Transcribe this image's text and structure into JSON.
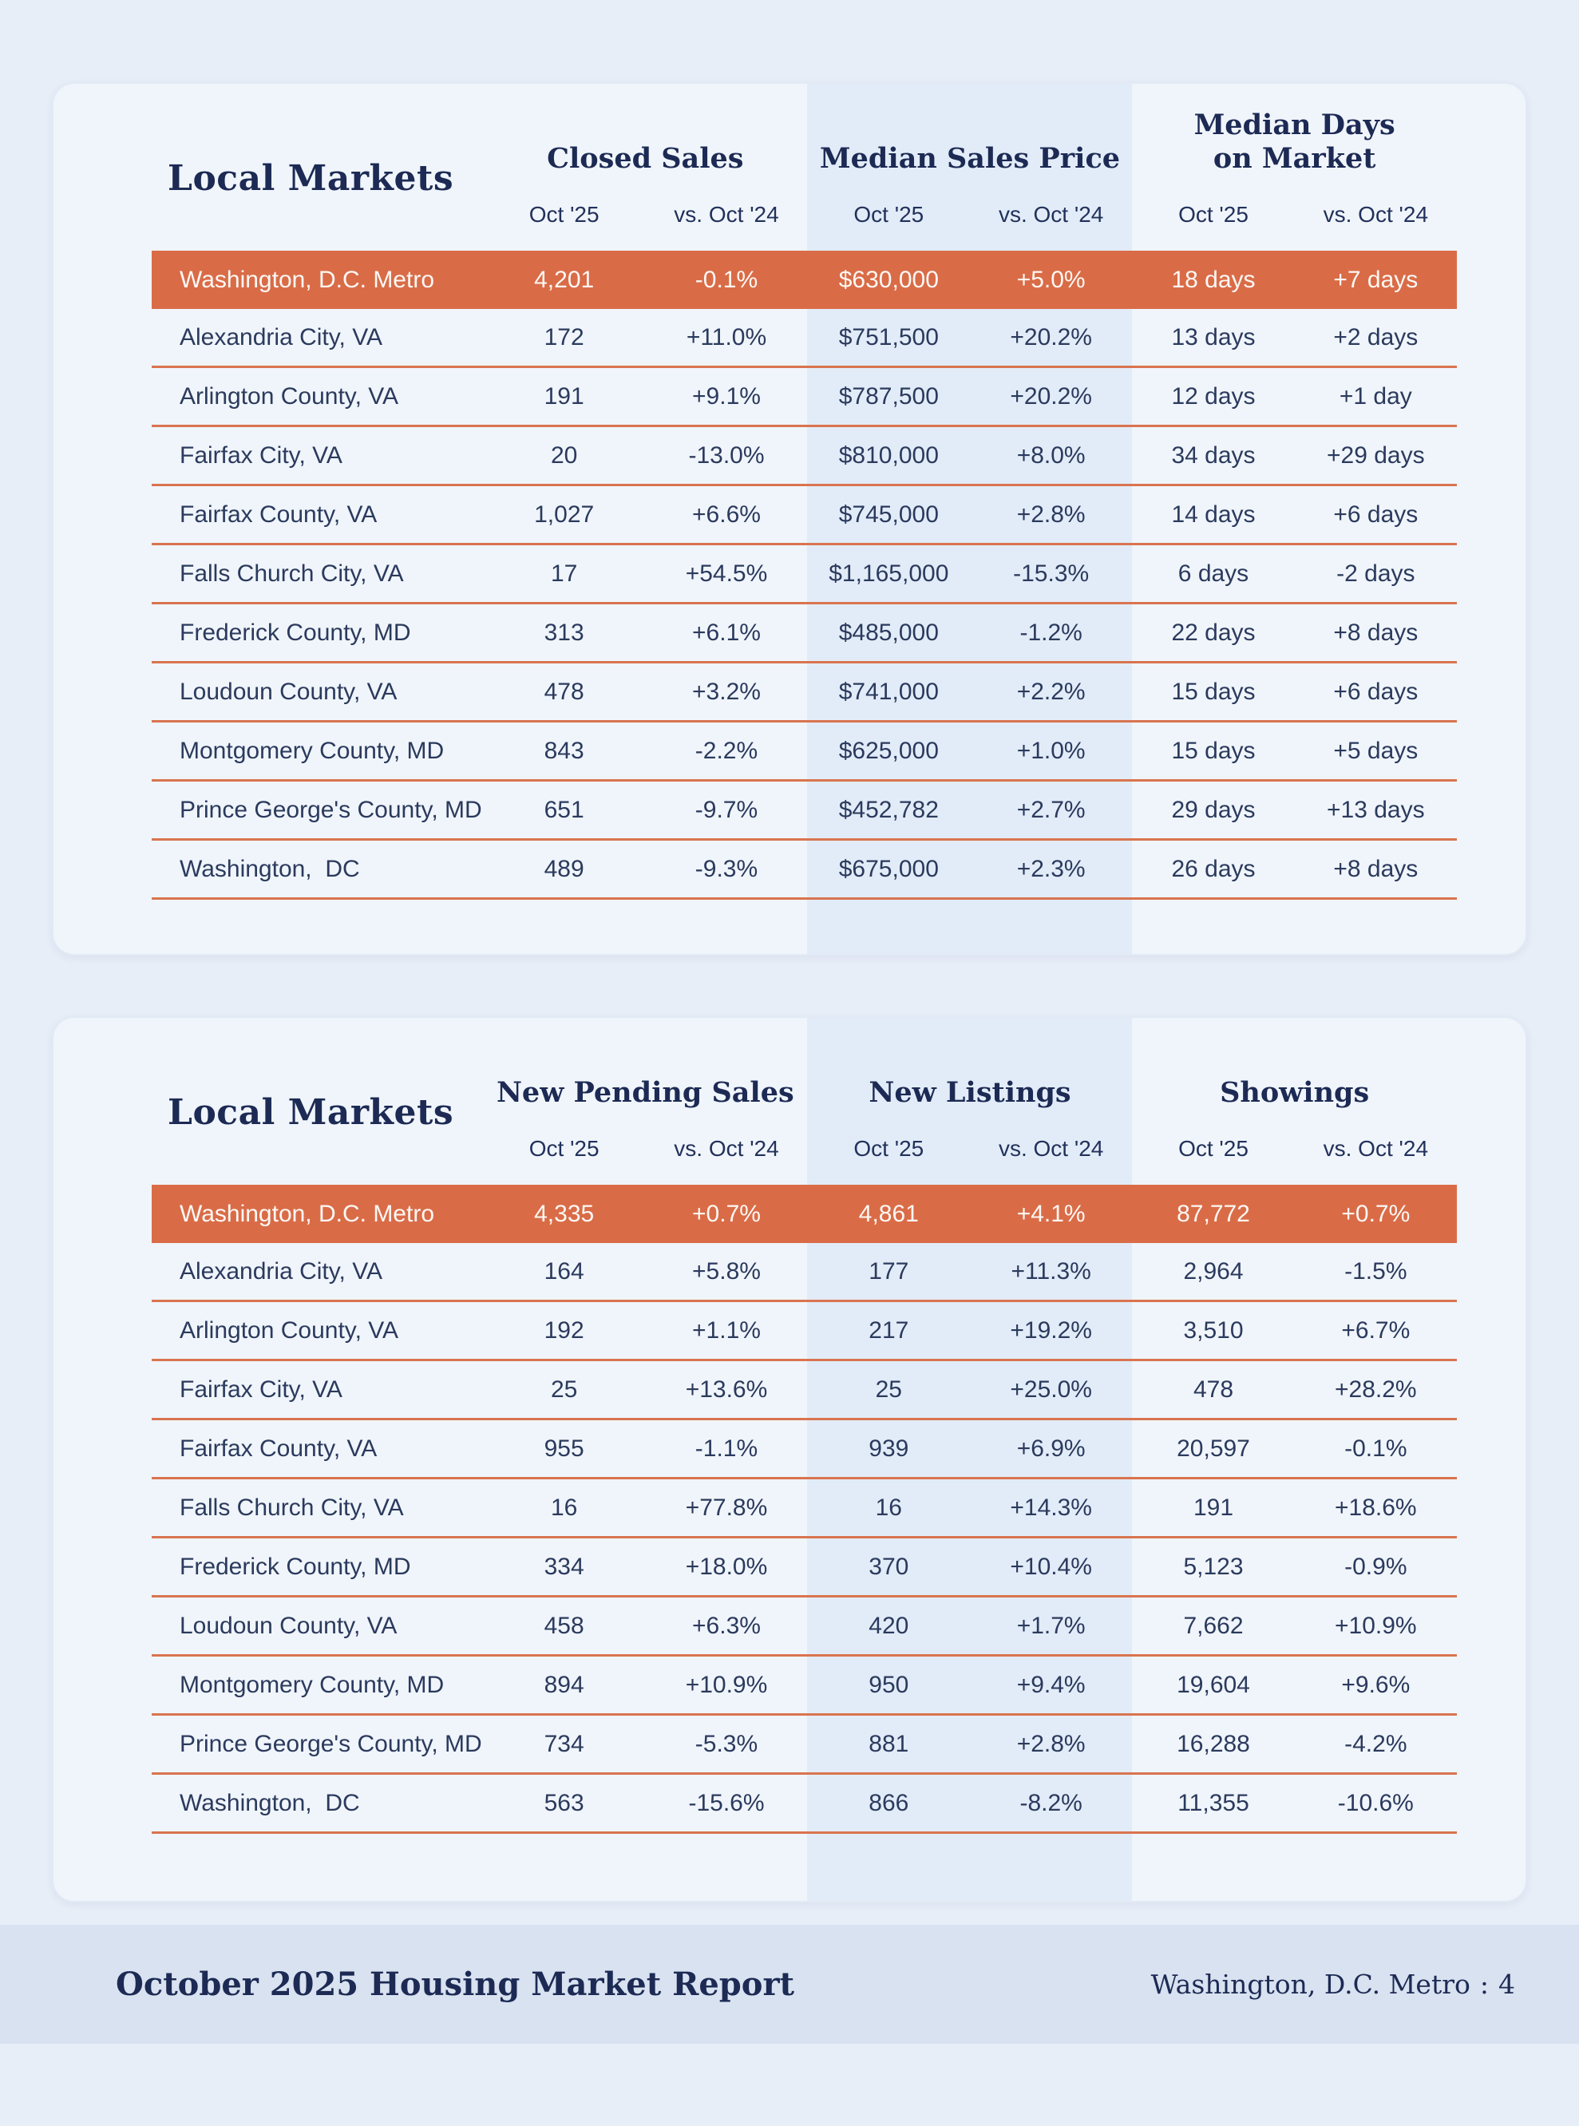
{
  "colors": {
    "accent_orange": "#d96c47",
    "row_separator": "#d9744f",
    "heading_navy": "#1c2a54",
    "body_text": "#2b3a5d",
    "card_background": "#f0f5fb",
    "page_background": "#e8eef8",
    "column_band": "#e2ecf8",
    "footer_background": "#d8e2f0"
  },
  "tables": [
    {
      "title": "Local Markets",
      "group_headers": [
        {
          "line1": "Closed Sales",
          "line2": ""
        },
        {
          "line1": "Median Sales Price",
          "line2": ""
        },
        {
          "line1": "Median Days",
          "line2": "on Market"
        }
      ],
      "subheaders": [
        "Oct '25",
        "vs. Oct '24",
        "Oct '25",
        "vs. Oct '24",
        "Oct '25",
        "vs. Oct '24"
      ],
      "metro_row": {
        "name": "Washington, D.C. Metro",
        "values": [
          "4,201",
          "-0.1%",
          "$630,000",
          "+5.0%",
          "18 days",
          "+7 days"
        ]
      },
      "rows": [
        {
          "name": "Alexandria City, VA",
          "values": [
            "172",
            "+11.0%",
            "$751,500",
            "+20.2%",
            "13 days",
            "+2 days"
          ]
        },
        {
          "name": "Arlington County, VA",
          "values": [
            "191",
            "+9.1%",
            "$787,500",
            "+20.2%",
            "12 days",
            "+1 day"
          ]
        },
        {
          "name": "Fairfax City, VA",
          "values": [
            "20",
            "-13.0%",
            "$810,000",
            "+8.0%",
            "34 days",
            "+29 days"
          ]
        },
        {
          "name": "Fairfax County, VA",
          "values": [
            "1,027",
            "+6.6%",
            "$745,000",
            "+2.8%",
            "14 days",
            "+6 days"
          ]
        },
        {
          "name": "Falls Church City, VA",
          "values": [
            "17",
            "+54.5%",
            "$1,165,000",
            "-15.3%",
            "6 days",
            "-2 days"
          ]
        },
        {
          "name": "Frederick County, MD",
          "values": [
            "313",
            "+6.1%",
            "$485,000",
            "-1.2%",
            "22 days",
            "+8 days"
          ]
        },
        {
          "name": "Loudoun County, VA",
          "values": [
            "478",
            "+3.2%",
            "$741,000",
            "+2.2%",
            "15 days",
            "+6 days"
          ]
        },
        {
          "name": "Montgomery County, MD",
          "values": [
            "843",
            "-2.2%",
            "$625,000",
            "+1.0%",
            "15 days",
            "+5 days"
          ]
        },
        {
          "name": "Prince George's County, MD",
          "values": [
            "651",
            "-9.7%",
            "$452,782",
            "+2.7%",
            "29 days",
            "+13 days"
          ]
        },
        {
          "name": "Washington,  DC",
          "values": [
            "489",
            "-9.3%",
            "$675,000",
            "+2.3%",
            "26 days",
            "+8 days"
          ]
        }
      ]
    },
    {
      "title": "Local Markets",
      "group_headers": [
        {
          "line1": "New Pending Sales",
          "line2": ""
        },
        {
          "line1": "New Listings",
          "line2": ""
        },
        {
          "line1": "Showings",
          "line2": ""
        }
      ],
      "subheaders": [
        "Oct '25",
        "vs. Oct '24",
        "Oct '25",
        "vs. Oct '24",
        "Oct '25",
        "vs. Oct '24"
      ],
      "metro_row": {
        "name": "Washington, D.C. Metro",
        "values": [
          "4,335",
          "+0.7%",
          "4,861",
          "+4.1%",
          "87,772",
          "+0.7%"
        ]
      },
      "rows": [
        {
          "name": "Alexandria City, VA",
          "values": [
            "164",
            "+5.8%",
            "177",
            "+11.3%",
            "2,964",
            "-1.5%"
          ]
        },
        {
          "name": "Arlington County, VA",
          "values": [
            "192",
            "+1.1%",
            "217",
            "+19.2%",
            "3,510",
            "+6.7%"
          ]
        },
        {
          "name": "Fairfax City, VA",
          "values": [
            "25",
            "+13.6%",
            "25",
            "+25.0%",
            "478",
            "+28.2%"
          ]
        },
        {
          "name": "Fairfax County, VA",
          "values": [
            "955",
            "-1.1%",
            "939",
            "+6.9%",
            "20,597",
            "-0.1%"
          ]
        },
        {
          "name": "Falls Church City, VA",
          "values": [
            "16",
            "+77.8%",
            "16",
            "+14.3%",
            "191",
            "+18.6%"
          ]
        },
        {
          "name": "Frederick County, MD",
          "values": [
            "334",
            "+18.0%",
            "370",
            "+10.4%",
            "5,123",
            "-0.9%"
          ]
        },
        {
          "name": "Loudoun County, VA",
          "values": [
            "458",
            "+6.3%",
            "420",
            "+1.7%",
            "7,662",
            "+10.9%"
          ]
        },
        {
          "name": "Montgomery County, MD",
          "values": [
            "894",
            "+10.9%",
            "950",
            "+9.4%",
            "19,604",
            "+9.6%"
          ]
        },
        {
          "name": "Prince George's County, MD",
          "values": [
            "734",
            "-5.3%",
            "881",
            "+2.8%",
            "16,288",
            "-4.2%"
          ]
        },
        {
          "name": "Washington,  DC",
          "values": [
            "563",
            "-15.6%",
            "866",
            "-8.2%",
            "11,355",
            "-10.6%"
          ]
        }
      ]
    }
  ],
  "footer": {
    "title": "October 2025 Housing Market Report",
    "page_label": "Washington, D.C. Metro",
    "separator": ":",
    "page_number": "4"
  }
}
